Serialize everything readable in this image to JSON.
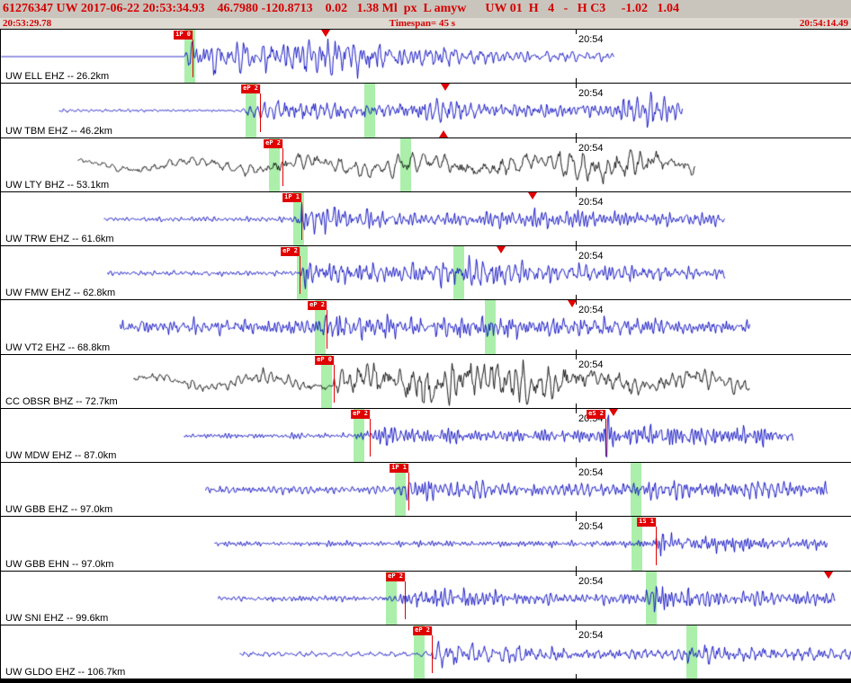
{
  "header": {
    "line1": "61276347 UW 2017-06-22 20:53:34.93    46.7980 -120.8713    0.02   1.38 Ml  px  L amyw      UW 01  H   4   -   H C3     -1.02   1.04",
    "start_time": "20:53:29.78",
    "timespan_label": "Timespan= 45 s",
    "end_time": "20:54:14.49"
  },
  "minute": {
    "label": "20:54",
    "frac": 0.6755
  },
  "colors": {
    "header_bg": "#c9c5bd",
    "header_text": "#d40000",
    "pick_red": "#e00000",
    "band_green": "#abefab",
    "trace_blue": "#0000c0",
    "trace_black": "#000000"
  },
  "traces": [
    {
      "station": "UW ELL EHZ -- 26.2km",
      "color": "#0000c0",
      "seed": 3,
      "freq": 0.17,
      "lowfreq": 0,
      "start": 0.0,
      "end": 0.72,
      "envelope": [
        [
          0,
          0
        ],
        [
          0.214,
          0
        ],
        [
          0.218,
          10
        ],
        [
          0.24,
          15
        ],
        [
          0.3,
          13
        ],
        [
          0.36,
          18
        ],
        [
          0.4,
          15
        ],
        [
          0.46,
          10
        ],
        [
          0.55,
          7
        ],
        [
          0.63,
          5
        ],
        [
          0.72,
          4
        ]
      ],
      "picks": [
        {
          "frac": 0.2252,
          "label": "iP 0"
        }
      ],
      "bands": [
        0.2225
      ],
      "triangles": [
        {
          "frac": 0.3816,
          "pos": "top"
        }
      ]
    },
    {
      "station": "UW TBM EHZ -- 46.2km",
      "color": "#0000c0",
      "seed": 7,
      "freq": 0.18,
      "lowfreq": 0,
      "start": 0.068,
      "end": 0.8,
      "envelope": [
        [
          0.068,
          1.2
        ],
        [
          0.28,
          1.5
        ],
        [
          0.3,
          8
        ],
        [
          0.34,
          12
        ],
        [
          0.42,
          9
        ],
        [
          0.5,
          11
        ],
        [
          0.58,
          8
        ],
        [
          0.65,
          7
        ],
        [
          0.72,
          8
        ],
        [
          0.755,
          14
        ],
        [
          0.79,
          10
        ],
        [
          0.8,
          5
        ]
      ],
      "picks": [
        {
          "frac": 0.3044,
          "label": "eP 2"
        }
      ],
      "bands": [
        0.294,
        0.4334
      ],
      "triangles": [
        {
          "frac": 0.5222,
          "pos": "top"
        },
        {
          "frac": 0.5201,
          "pos": "bottom"
        }
      ]
    },
    {
      "station": "UW LTY BHZ -- 53.1km",
      "color": "#000000",
      "seed": 11,
      "freq": 0.07,
      "lowfreq": 5,
      "start": 0.09,
      "end": 0.815,
      "envelope": [
        [
          0.09,
          3
        ],
        [
          0.31,
          4
        ],
        [
          0.325,
          8
        ],
        [
          0.4,
          7
        ],
        [
          0.48,
          8
        ],
        [
          0.56,
          7
        ],
        [
          0.64,
          9
        ],
        [
          0.72,
          13
        ],
        [
          0.76,
          12
        ],
        [
          0.815,
          6
        ]
      ],
      "picks": [
        {
          "frac": 0.3309,
          "label": "eP 2"
        }
      ],
      "bands": [
        0.3214,
        0.4757
      ],
      "triangles": []
    },
    {
      "station": "UW TRW EHZ -- 61.6km",
      "color": "#0000c0",
      "seed": 13,
      "freq": 0.19,
      "lowfreq": 0,
      "start": 0.12,
      "end": 0.85,
      "envelope": [
        [
          0.12,
          1.8
        ],
        [
          0.345,
          2
        ],
        [
          0.352,
          14
        ],
        [
          0.39,
          10
        ],
        [
          0.45,
          7
        ],
        [
          0.52,
          6
        ],
        [
          0.58,
          8
        ],
        [
          0.64,
          9
        ],
        [
          0.7,
          7
        ],
        [
          0.78,
          6
        ],
        [
          0.85,
          5
        ]
      ],
      "picks": [
        {
          "frac": 0.3531,
          "label": "iP 1"
        }
      ],
      "bands": [
        0.35
      ],
      "triangles": [
        {
          "frac": 0.6248,
          "pos": "top"
        }
      ]
    },
    {
      "station": "UW FMW EHZ -- 62.8km",
      "color": "#0000c0",
      "seed": 17,
      "freq": 0.18,
      "lowfreq": 0,
      "start": 0.125,
      "end": 0.85,
      "envelope": [
        [
          0.125,
          2.2
        ],
        [
          0.35,
          2.5
        ],
        [
          0.358,
          12
        ],
        [
          0.41,
          9
        ],
        [
          0.47,
          8
        ],
        [
          0.53,
          11
        ],
        [
          0.58,
          12
        ],
        [
          0.63,
          9
        ],
        [
          0.7,
          7
        ],
        [
          0.78,
          6
        ],
        [
          0.85,
          5
        ]
      ],
      "picks": [
        {
          "frac": 0.3509,
          "label": "eP 2"
        }
      ],
      "bands": [
        0.3541,
        0.5381
      ],
      "triangles": [
        {
          "frac": 0.5877,
          "pos": "top"
        }
      ]
    },
    {
      "station": "UW VT2 EHZ -- 68.8km",
      "color": "#0000c0",
      "seed": 19,
      "freq": 0.17,
      "lowfreq": 0,
      "start": 0.14,
      "end": 0.88,
      "envelope": [
        [
          0.14,
          6
        ],
        [
          0.37,
          6
        ],
        [
          0.383,
          12
        ],
        [
          0.44,
          9
        ],
        [
          0.5,
          8
        ],
        [
          0.56,
          11
        ],
        [
          0.62,
          9
        ],
        [
          0.7,
          8
        ],
        [
          0.78,
          7
        ],
        [
          0.88,
          5
        ]
      ],
      "picks": [
        {
          "frac": 0.3827,
          "label": "eP 2"
        }
      ],
      "bands": [
        0.3753,
        0.5751
      ],
      "triangles": [
        {
          "frac": 0.6712,
          "pos": "top"
        }
      ]
    },
    {
      "station": "CC OBSR BHZ -- 72.7km",
      "color": "#000000",
      "seed": 23,
      "freq": 0.08,
      "lowfreq": 6,
      "start": 0.155,
      "end": 0.88,
      "envelope": [
        [
          0.155,
          4
        ],
        [
          0.388,
          5
        ],
        [
          0.4,
          12
        ],
        [
          0.46,
          17
        ],
        [
          0.52,
          15
        ],
        [
          0.58,
          17
        ],
        [
          0.64,
          13
        ],
        [
          0.7,
          11
        ],
        [
          0.78,
          8
        ],
        [
          0.88,
          6
        ]
      ],
      "picks": [
        {
          "frac": 0.3912,
          "label": "eP 0"
        }
      ],
      "bands": [
        0.3827
      ],
      "triangles": []
    },
    {
      "station": "UW MDW EHZ -- 87.0km",
      "color": "#0000c0",
      "seed": 29,
      "freq": 0.19,
      "lowfreq": 0,
      "start": 0.215,
      "end": 0.93,
      "envelope": [
        [
          0.215,
          2.2
        ],
        [
          0.425,
          2.5
        ],
        [
          0.436,
          9
        ],
        [
          0.49,
          7
        ],
        [
          0.55,
          6
        ],
        [
          0.62,
          5
        ],
        [
          0.7,
          6
        ],
        [
          0.712,
          18
        ],
        [
          0.725,
          10
        ],
        [
          0.78,
          9
        ],
        [
          0.85,
          8
        ],
        [
          0.93,
          6
        ]
      ],
      "picks": [
        {
          "frac": 0.4334,
          "label": "eP 2"
        },
        {
          "frac": 0.7104,
          "label": "eS 2"
        }
      ],
      "bands": [
        0.4207
      ],
      "triangles": [
        {
          "frac": 0.7199,
          "pos": "top"
        }
      ]
    },
    {
      "station": "UW GBB EHZ -- 97.0km",
      "color": "#0000c0",
      "seed": 31,
      "freq": 0.18,
      "lowfreq": 0,
      "start": 0.24,
      "end": 0.97,
      "envelope": [
        [
          0.24,
          3.5
        ],
        [
          0.47,
          3.5
        ],
        [
          0.48,
          10
        ],
        [
          0.54,
          8
        ],
        [
          0.6,
          6
        ],
        [
          0.66,
          6
        ],
        [
          0.72,
          6
        ],
        [
          0.75,
          9
        ],
        [
          0.8,
          8
        ],
        [
          0.88,
          8
        ],
        [
          0.97,
          6
        ]
      ],
      "picks": [
        {
          "frac": 0.4789,
          "label": "iP 1"
        }
      ],
      "bands": [
        0.4694,
        0.7463
      ],
      "triangles": []
    },
    {
      "station": "UW GBB EHN -- 97.0km",
      "color": "#0000c0",
      "seed": 37,
      "freq": 0.17,
      "lowfreq": 0,
      "start": 0.25,
      "end": 0.97,
      "envelope": [
        [
          0.25,
          2
        ],
        [
          0.55,
          2.2
        ],
        [
          0.65,
          2.5
        ],
        [
          0.755,
          3
        ],
        [
          0.768,
          3
        ],
        [
          0.772,
          16
        ],
        [
          0.79,
          8
        ],
        [
          0.84,
          7
        ],
        [
          0.9,
          6
        ],
        [
          0.97,
          5
        ]
      ],
      "picks": [
        {
          "frac": 0.7696,
          "label": "iS 1"
        }
      ],
      "bands": [
        0.7474
      ],
      "triangles": []
    },
    {
      "station": "UW SNI EHZ -- 99.6km",
      "color": "#0000c0",
      "seed": 41,
      "freq": 0.18,
      "lowfreq": 0,
      "start": 0.255,
      "end": 0.98,
      "envelope": [
        [
          0.255,
          2.2
        ],
        [
          0.465,
          2.5
        ],
        [
          0.475,
          10
        ],
        [
          0.53,
          8
        ],
        [
          0.6,
          6
        ],
        [
          0.67,
          5
        ],
        [
          0.74,
          5
        ],
        [
          0.775,
          11
        ],
        [
          0.82,
          9
        ],
        [
          0.9,
          7
        ],
        [
          0.98,
          5
        ]
      ],
      "picks": [
        {
          "frac": 0.4747,
          "label": "eP 2"
        }
      ],
      "bands": [
        0.4588,
        0.7643
      ],
      "triangles": [
        {
          "frac": 0.9725,
          "pos": "top"
        }
      ]
    },
    {
      "station": "UW GLDO EHZ -- 106.7km",
      "color": "#0000c0",
      "seed": 43,
      "freq": 0.18,
      "lowfreq": 0,
      "start": 0.28,
      "end": 1.0,
      "envelope": [
        [
          0.28,
          2
        ],
        [
          0.503,
          2
        ],
        [
          0.512,
          9
        ],
        [
          0.57,
          7
        ],
        [
          0.63,
          6
        ],
        [
          0.7,
          5
        ],
        [
          0.78,
          5
        ],
        [
          0.815,
          9
        ],
        [
          0.87,
          7
        ],
        [
          1.0,
          5
        ]
      ],
      "picks": [
        {
          "frac": 0.5063,
          "label": "eP 2"
        }
      ],
      "bands": [
        0.4915,
        0.8119
      ],
      "triangles": []
    }
  ]
}
